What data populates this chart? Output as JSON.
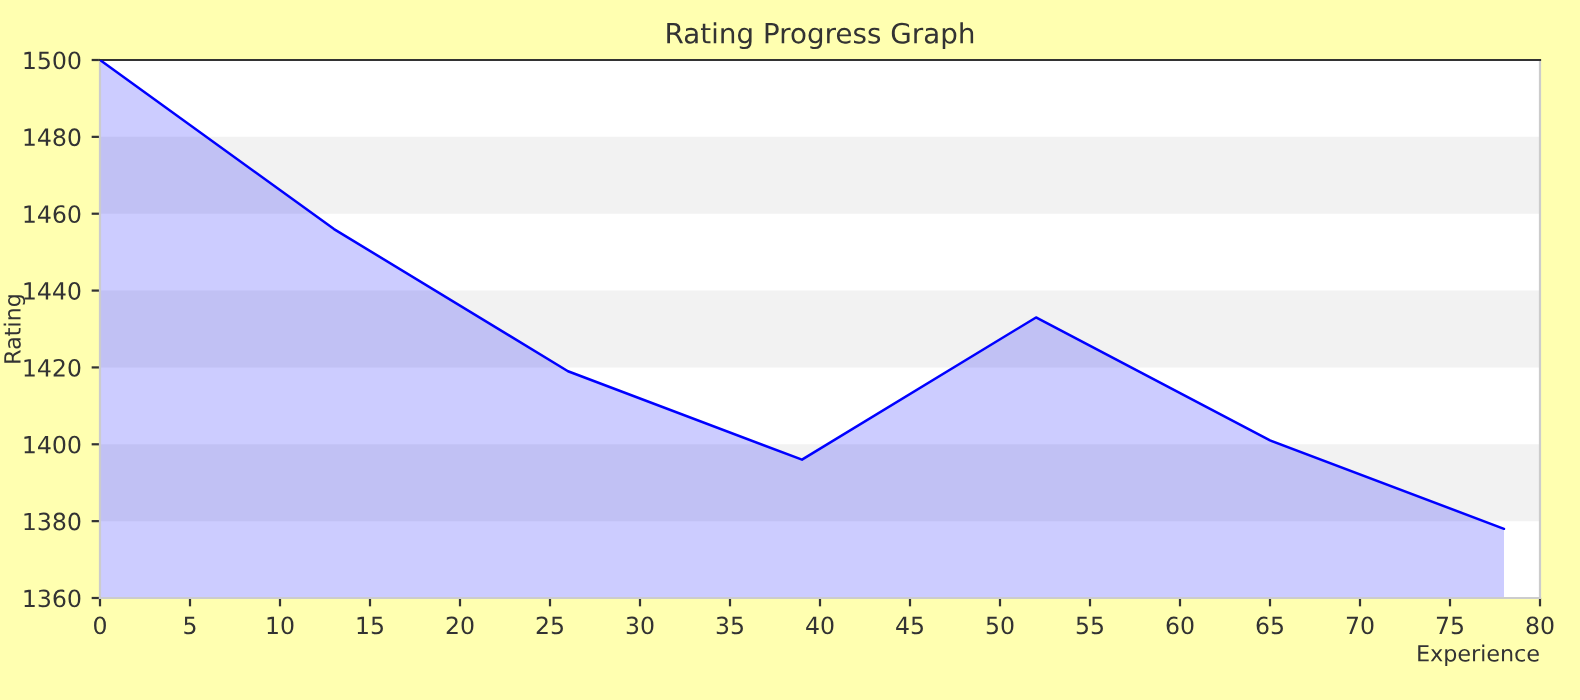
{
  "chart_data": {
    "type": "area",
    "title": "Rating Progress Graph",
    "xlabel": "Experience",
    "ylabel": "Rating",
    "x": [
      0,
      13,
      26,
      39,
      52,
      65,
      78
    ],
    "series": [
      {
        "color": "#0000ff",
        "values": [
          1500,
          1456,
          1419,
          1396,
          1433,
          1401,
          1378
        ]
      }
    ],
    "xlim": [
      0,
      80
    ],
    "xticks": [
      0,
      5,
      10,
      15,
      20,
      25,
      30,
      35,
      40,
      45,
      50,
      55,
      60,
      65,
      70,
      75,
      80
    ],
    "ylim": [
      1360,
      1500
    ],
    "yticks": [
      1360,
      1380,
      1400,
      1420,
      1440,
      1460,
      1480,
      1500
    ],
    "legend": false
  }
}
